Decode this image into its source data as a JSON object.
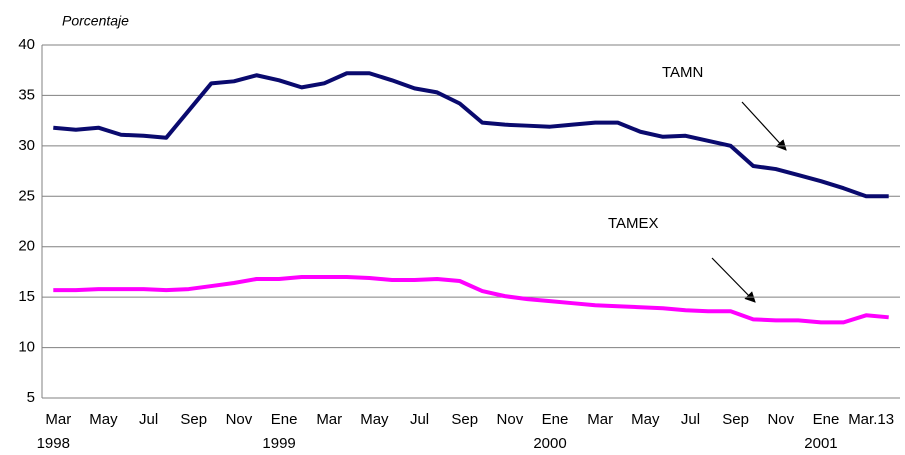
{
  "chart_data": {
    "type": "line",
    "y_axis_label": "Porcentaje",
    "categories": [
      "Mar",
      null,
      "May",
      null,
      "Jul",
      null,
      "Sep",
      null,
      "Nov",
      null,
      "Ene",
      null,
      "Mar",
      null,
      "May",
      null,
      "Jul",
      null,
      "Sep",
      null,
      "Nov",
      null,
      "Ene",
      null,
      "Mar",
      null,
      "May",
      null,
      "Jul",
      null,
      "Sep",
      null,
      "Nov",
      null,
      "Ene",
      null,
      "Mar.13",
      null
    ],
    "year_labels": [
      "1998",
      null,
      null,
      null,
      null,
      null,
      null,
      null,
      null,
      null,
      "1999",
      null,
      null,
      null,
      null,
      null,
      null,
      null,
      null,
      null,
      null,
      null,
      "2000",
      null,
      null,
      null,
      null,
      null,
      null,
      null,
      null,
      null,
      null,
      null,
      "2001",
      null,
      null,
      null
    ],
    "series": [
      {
        "name": "TAMN",
        "color": "#0a0a6e",
        "width": 4,
        "values": [
          31.8,
          31.6,
          31.8,
          31.1,
          31.0,
          30.8,
          33.5,
          36.2,
          36.4,
          37.0,
          36.5,
          35.8,
          36.2,
          37.2,
          37.2,
          36.5,
          35.7,
          35.3,
          34.2,
          32.3,
          32.1,
          32.0,
          31.9,
          32.1,
          32.3,
          32.3,
          31.4,
          30.9,
          31.0,
          30.5,
          30.0,
          28.0,
          27.7,
          27.1,
          26.5,
          25.8,
          25.0,
          25.0
        ]
      },
      {
        "name": "TAMEX",
        "color": "#ff00ff",
        "width": 4,
        "values": [
          15.7,
          15.7,
          15.8,
          15.8,
          15.8,
          15.7,
          15.8,
          16.1,
          16.4,
          16.8,
          16.8,
          17.0,
          17.0,
          17.0,
          16.9,
          16.7,
          16.7,
          16.8,
          16.6,
          15.6,
          15.1,
          14.8,
          14.6,
          14.4,
          14.2,
          14.1,
          14.0,
          13.9,
          13.7,
          13.6,
          13.6,
          12.8,
          12.7,
          12.7,
          12.5,
          12.5,
          13.2,
          13.0
        ]
      }
    ],
    "ylim": [
      5,
      40
    ],
    "yticks": [
      5,
      10,
      15,
      20,
      25,
      30,
      35,
      40
    ],
    "grid": true
  }
}
